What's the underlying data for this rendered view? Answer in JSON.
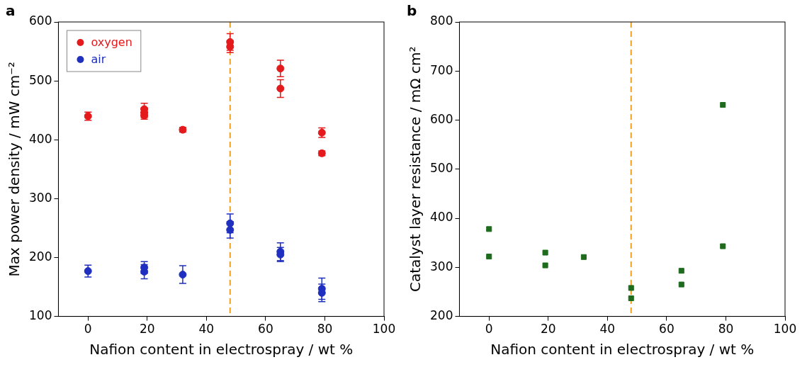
{
  "chart_data": [
    {
      "type": "scatter",
      "panel_label": "a",
      "x_label": "Nafion content in electrospray / wt %",
      "y_label": "Max power density / mW cm⁻²",
      "xlim": [
        -10,
        100
      ],
      "xticks": [
        0,
        20,
        40,
        60,
        80,
        100
      ],
      "ylim": [
        100,
        600
      ],
      "yticks": [
        100,
        200,
        300,
        400,
        500,
        600
      ],
      "grid": false,
      "legend": "upper left",
      "reference_line": {
        "x": 48,
        "color": "#f0a020",
        "line_style": "dashed"
      },
      "series": [
        {
          "name": "oxygen",
          "color": "#e41a1c",
          "marker": "circle",
          "x": [
            0,
            19,
            19,
            19,
            32,
            48,
            48,
            65,
            65,
            79,
            79
          ],
          "values": [
            440,
            452,
            446,
            441,
            417,
            566,
            558,
            521,
            487,
            412,
            377
          ],
          "errors": [
            7,
            10,
            8,
            6,
            4,
            14,
            10,
            14,
            15,
            8,
            4
          ]
        },
        {
          "name": "air",
          "color": "#1f2fbf",
          "marker": "circle",
          "x": [
            0,
            19,
            19,
            32,
            48,
            48,
            65,
            65,
            79,
            79
          ],
          "values": [
            177,
            183,
            176,
            171,
            258,
            247,
            210,
            205,
            147,
            140
          ],
          "errors": [
            10,
            10,
            12,
            15,
            16,
            14,
            15,
            12,
            18,
            15
          ]
        }
      ]
    },
    {
      "type": "scatter",
      "panel_label": "b",
      "x_label": "Nafion content in electrospray / wt %",
      "y_label": "Catalyst layer resistance / mΩ cm²",
      "xlim": [
        -10,
        100
      ],
      "xticks": [
        0,
        20,
        40,
        60,
        80,
        100
      ],
      "ylim": [
        200,
        800
      ],
      "yticks": [
        200,
        300,
        400,
        500,
        600,
        700,
        800
      ],
      "grid": false,
      "reference_line": {
        "x": 48,
        "color": "#f0a020",
        "line_style": "dashed"
      },
      "color": "#1e6b1e",
      "marker": "square",
      "x": [
        0,
        0,
        19,
        19,
        32,
        48,
        48,
        65,
        65,
        79,
        79
      ],
      "values": [
        378,
        322,
        330,
        304,
        321,
        258,
        237,
        293,
        265,
        631,
        343
      ]
    }
  ]
}
